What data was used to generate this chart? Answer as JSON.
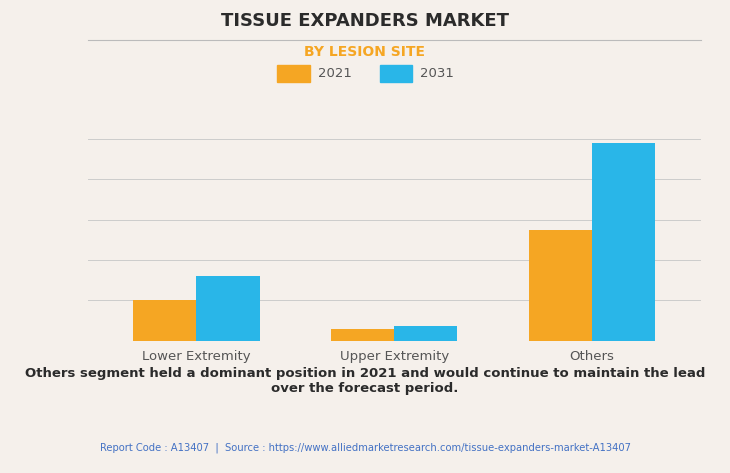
{
  "title": "TISSUE EXPANDERS MARKET",
  "subtitle": "BY LESION SITE",
  "categories": [
    "Lower Extremity",
    "Upper Extremity",
    "Others"
  ],
  "series": [
    {
      "label": "2021",
      "color": "#F5A623",
      "values": [
        2.0,
        0.55,
        5.5
      ]
    },
    {
      "label": "2031",
      "color": "#29B6E8",
      "values": [
        3.2,
        0.72,
        9.8
      ]
    }
  ],
  "background_color": "#F5F0EB",
  "plot_bg_color": "#F5F0EB",
  "grid_color": "#CCCCCC",
  "title_color": "#2B2B2B",
  "subtitle_color": "#F5A623",
  "title_fontsize": 13,
  "subtitle_fontsize": 10,
  "tick_label_fontsize": 9.5,
  "legend_fontsize": 9.5,
  "bar_width": 0.32,
  "footer_text": "Others segment held a dominant position in 2021 and would continue to maintain the lead\nover the forecast period.",
  "report_text": "Report Code : A13407  |  Source : https://www.alliedmarketresearch.com/tissue-expanders-market-A13407",
  "report_color": "#4472C4",
  "footer_color": "#2B2B2B"
}
